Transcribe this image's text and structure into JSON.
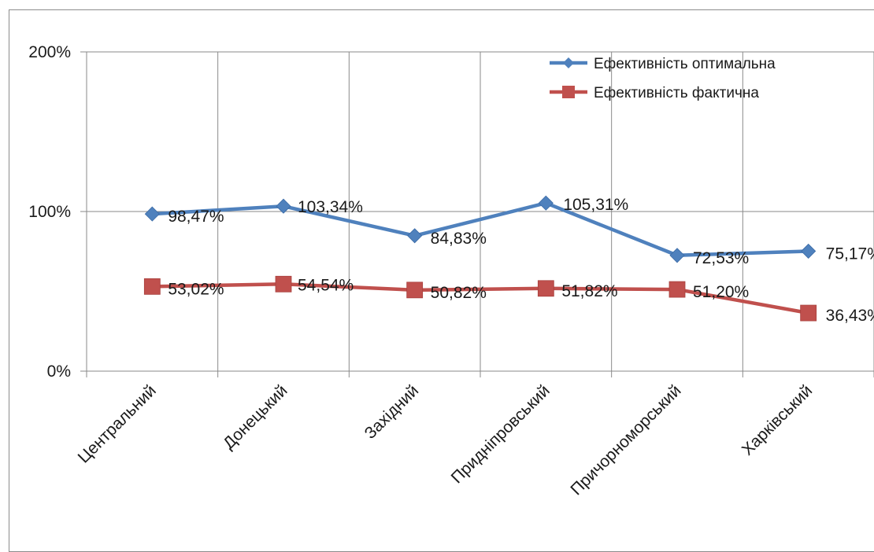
{
  "chart_data": {
    "type": "line",
    "categories": [
      "Центральний",
      "Донецький",
      "Західний",
      "Придніпровський",
      "Причорноморський",
      "Харківський"
    ],
    "series": [
      {
        "name": "Ефективність оптимальна",
        "values": [
          98.47,
          103.34,
          84.83,
          105.31,
          72.53,
          75.17
        ],
        "labels": [
          "98,47%",
          "103,34%",
          "84,83%",
          "105,31%",
          "72,53%",
          "75,17%"
        ],
        "color": "#4f81bd",
        "marker": "diamond"
      },
      {
        "name": "Ефективність фактична",
        "values": [
          53.02,
          54.54,
          50.82,
          51.82,
          51.2,
          36.43
        ],
        "labels": [
          "53,02%",
          "54,54%",
          "50,82%",
          "51,82%",
          "51,20%",
          "36,43%"
        ],
        "color": "#c0504d",
        "marker": "square"
      }
    ],
    "y_ticks": [
      {
        "value": 0,
        "label": "0%"
      },
      {
        "value": 100,
        "label": "100%"
      },
      {
        "value": 200,
        "label": "200%"
      }
    ],
    "ylim": [
      0,
      200
    ],
    "grid": true,
    "legend_position": "top-right"
  }
}
